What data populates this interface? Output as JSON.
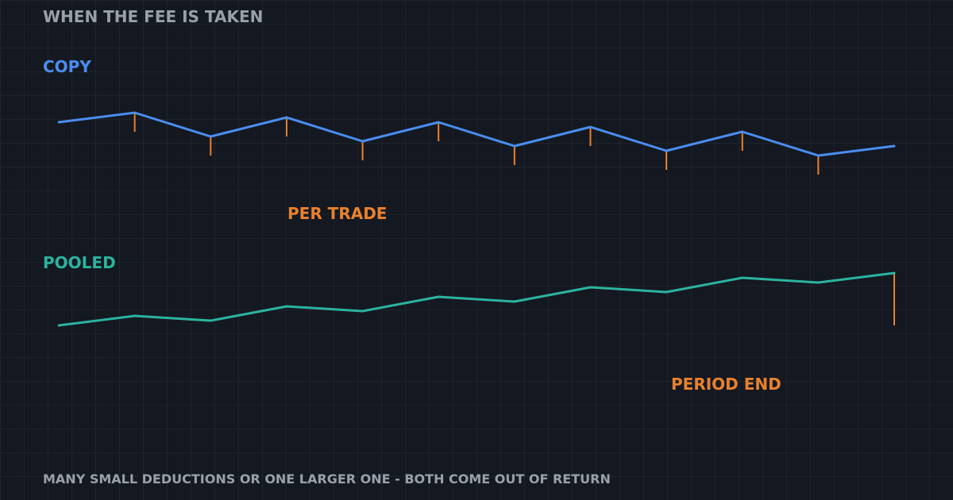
{
  "title": "WHEN THE FEE IS TAKEN",
  "footer": "MANY SMALL DEDUCTIONS OR ONE LARGER ONE  -  BOTH COME OUT OF RETURN",
  "colors": {
    "background": "#141821",
    "copy_line": "#4a8df0",
    "pooled_line": "#2bb3a0",
    "fee_mark": "#e8812f",
    "muted_text": "#9aa0aa"
  },
  "chart_data": [
    {
      "type": "line",
      "panel_label": "COPY",
      "annotation": "PER TRADE",
      "x": [
        0,
        1,
        2,
        3,
        4,
        5,
        6,
        7,
        8,
        9,
        10,
        11
      ],
      "values": [
        10.0,
        12.0,
        7.0,
        11.0,
        6.0,
        10.0,
        5.0,
        9.0,
        4.0,
        8.0,
        3.0,
        5.0
      ],
      "fee_deductions": [
        {
          "x": 1,
          "amount": 4.0
        },
        {
          "x": 2,
          "amount": 4.0
        },
        {
          "x": 3,
          "amount": 4.0
        },
        {
          "x": 4,
          "amount": 4.0
        },
        {
          "x": 5,
          "amount": 4.0
        },
        {
          "x": 6,
          "amount": 4.0
        },
        {
          "x": 7,
          "amount": 4.0
        },
        {
          "x": 8,
          "amount": 4.0
        },
        {
          "x": 9,
          "amount": 4.0
        },
        {
          "x": 10,
          "amount": 4.0
        }
      ],
      "ylim": [
        0,
        14
      ],
      "grid": true
    },
    {
      "type": "line",
      "panel_label": "POOLED",
      "annotation": "PERIOD END",
      "x": [
        0,
        1,
        2,
        3,
        4,
        5,
        6,
        7,
        8,
        9,
        10,
        11
      ],
      "values": [
        2.0,
        4.0,
        3.0,
        6.0,
        5.0,
        8.0,
        7.0,
        10.0,
        9.0,
        12.0,
        11.0,
        13.0
      ],
      "fee_deductions": [
        {
          "x": 11,
          "amount": 11.0
        }
      ],
      "ylim": [
        0,
        14
      ],
      "grid": true
    }
  ]
}
